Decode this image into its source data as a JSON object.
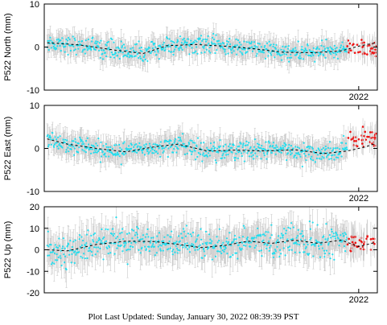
{
  "footer": {
    "text": "Plot Last Updated:   Sunday, January 30, 2022 08:39:39 PST"
  },
  "colors": {
    "data": "#22ddee",
    "recent": "#ee1111",
    "errorbar": "#c8c8c8",
    "trend": "#000000",
    "frame": "#000000"
  },
  "chart_data": [
    {
      "type": "scatter",
      "ylabel": "P522 North (mm)",
      "ylim": [
        -10,
        10
      ],
      "yticks": [
        "10",
        "0",
        "-10"
      ],
      "ytick_values": [
        10,
        0,
        -10
      ],
      "x_tick_label": "2022",
      "x_tick_value": 2022.0,
      "xlim": [
        2016.6,
        2022.32
      ],
      "grid": false,
      "series": [
        {
          "style": "cyan points with grey error bars",
          "x_range": [
            2016.65,
            2021.8
          ],
          "noise_sd": 1.2,
          "error_bar": 2.2
        },
        {
          "style": "red points",
          "x_range": [
            2021.8,
            2022.3
          ],
          "approx_y": [
            -1.5,
            1
          ]
        },
        {
          "style": "dashed trend line",
          "x": [
            2016.65,
            2017.2,
            2017.8,
            2018.3,
            2018.7,
            2019.2,
            2019.7,
            2020.2,
            2020.7,
            2021.2,
            2021.7,
            2022.0,
            2022.3
          ],
          "y": [
            1.0,
            0.5,
            -0.7,
            -1.5,
            0.3,
            0.6,
            0.2,
            -0.4,
            -1.2,
            -1.3,
            -0.9,
            0.2,
            1.0
          ]
        }
      ]
    },
    {
      "type": "scatter",
      "ylabel": "P522 East (mm)",
      "ylim": [
        -10,
        10
      ],
      "yticks": [
        "10",
        "0",
        "-10"
      ],
      "ytick_values": [
        10,
        0,
        -10
      ],
      "x_tick_label": "2022",
      "x_tick_value": 2022.0,
      "xlim": [
        2016.6,
        2022.32
      ],
      "grid": false,
      "series": [
        {
          "style": "cyan points with grey error bars",
          "x_range": [
            2016.65,
            2021.8
          ],
          "noise_sd": 1.3,
          "error_bar": 2.4
        },
        {
          "style": "red points",
          "x_range": [
            2021.8,
            2022.3
          ],
          "approx_y": [
            0,
            4
          ]
        },
        {
          "style": "dashed trend line",
          "x": [
            2016.65,
            2017.0,
            2017.5,
            2018.0,
            2018.5,
            2018.9,
            2019.4,
            2019.9,
            2020.4,
            2020.9,
            2021.4,
            2021.8,
            2022.1,
            2022.3
          ],
          "y": [
            2.2,
            1.0,
            0.0,
            -0.8,
            0.4,
            1.0,
            -0.6,
            -0.4,
            -0.6,
            -0.3,
            -1.2,
            -0.6,
            0.3,
            1.2
          ]
        }
      ]
    },
    {
      "type": "scatter",
      "ylabel": "P522 Up (mm)",
      "ylim": [
        -20,
        20
      ],
      "yticks": [
        "20",
        "10",
        "0",
        "-10",
        "-20"
      ],
      "ytick_values": [
        20,
        10,
        0,
        -10,
        -20
      ],
      "x_tick_label": "2022",
      "x_tick_value": 2022.0,
      "xlim": [
        2016.6,
        2022.32
      ],
      "grid": false,
      "series": [
        {
          "style": "cyan points with grey error bars",
          "x_range": [
            2016.65,
            2021.8
          ],
          "noise_sd": 4.0,
          "error_bar": 6.5
        },
        {
          "style": "red points",
          "x_range": [
            2021.8,
            2022.3
          ],
          "approx_y": [
            0,
            6
          ]
        },
        {
          "style": "dashed trend line",
          "x": [
            2016.65,
            2017.0,
            2017.5,
            2018.0,
            2018.5,
            2018.9,
            2019.3,
            2019.7,
            2020.1,
            2020.5,
            2020.9,
            2021.3,
            2021.7,
            2022.0,
            2022.3
          ],
          "y": [
            0.0,
            -0.5,
            2.5,
            4.0,
            3.8,
            2.5,
            1.0,
            2.0,
            4.0,
            3.0,
            4.5,
            3.0,
            4.5,
            1.5,
            3.5
          ]
        }
      ]
    }
  ]
}
